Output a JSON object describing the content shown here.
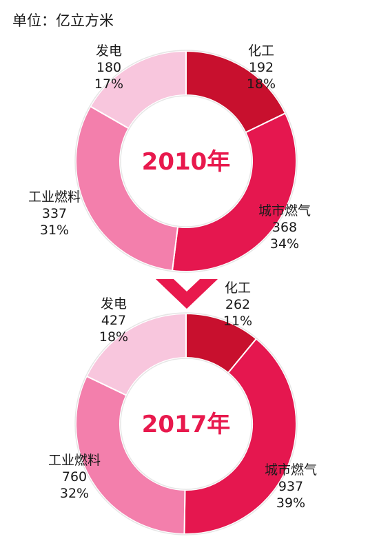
{
  "unit_label": "单位：亿立方米",
  "colors": {
    "化工": "#c8102e",
    "城市燃气": "#e5174f",
    "工业燃料": "#f37fac",
    "发电": "#f8c6dd",
    "arrow": "#e8194d",
    "center_text": "#e8194d"
  },
  "chart_data": [
    {
      "type": "pie",
      "variant": "donut",
      "center_label": "2010年",
      "categories": [
        "化工",
        "城市燃气",
        "工业燃料",
        "发电"
      ],
      "values": [
        192,
        368,
        337,
        180
      ],
      "percent_labels": [
        "18%",
        "34%",
        "31%",
        "17%"
      ]
    },
    {
      "type": "pie",
      "variant": "donut",
      "center_label": "2017年",
      "categories": [
        "化工",
        "城市燃气",
        "工业燃料",
        "发电"
      ],
      "values": [
        262,
        937,
        760,
        427
      ],
      "percent_labels": [
        "11%",
        "39%",
        "32%",
        "18%"
      ]
    }
  ]
}
